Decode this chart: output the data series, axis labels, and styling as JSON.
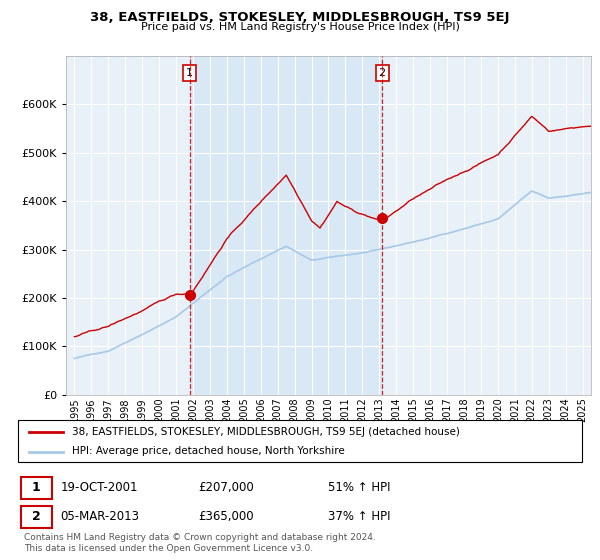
{
  "title1": "38, EASTFIELDS, STOKESLEY, MIDDLESBROUGH, TS9 5EJ",
  "title2": "Price paid vs. HM Land Registry's House Price Index (HPI)",
  "legend_line1": "38, EASTFIELDS, STOKESLEY, MIDDLESBROUGH, TS9 5EJ (detached house)",
  "legend_line2": "HPI: Average price, detached house, North Yorkshire",
  "sale1_label": "1",
  "sale1_date": "19-OCT-2001",
  "sale1_price": "£207,000",
  "sale1_hpi": "51% ↑ HPI",
  "sale2_label": "2",
  "sale2_date": "05-MAR-2013",
  "sale2_price": "£365,000",
  "sale2_hpi": "37% ↑ HPI",
  "footnote": "Contains HM Land Registry data © Crown copyright and database right 2024.\nThis data is licensed under the Open Government Licence v3.0.",
  "sale1_x": 2001.8,
  "sale1_y": 207000,
  "sale2_x": 2013.17,
  "sale2_y": 365000,
  "vline1_x": 2001.8,
  "vline2_x": 2013.17,
  "ylim_max": 700000,
  "xlim_left": 1994.5,
  "xlim_right": 2025.5,
  "hpi_color": "#a8c8e8",
  "price_color": "#cc0000",
  "shade_color": "#d8e8f5",
  "background_color": "#e8f0f8",
  "grid_color": "#ffffff",
  "yticks": [
    0,
    100000,
    200000,
    300000,
    400000,
    500000,
    600000
  ],
  "title_fontsize": 9.5,
  "subtitle_fontsize": 8
}
